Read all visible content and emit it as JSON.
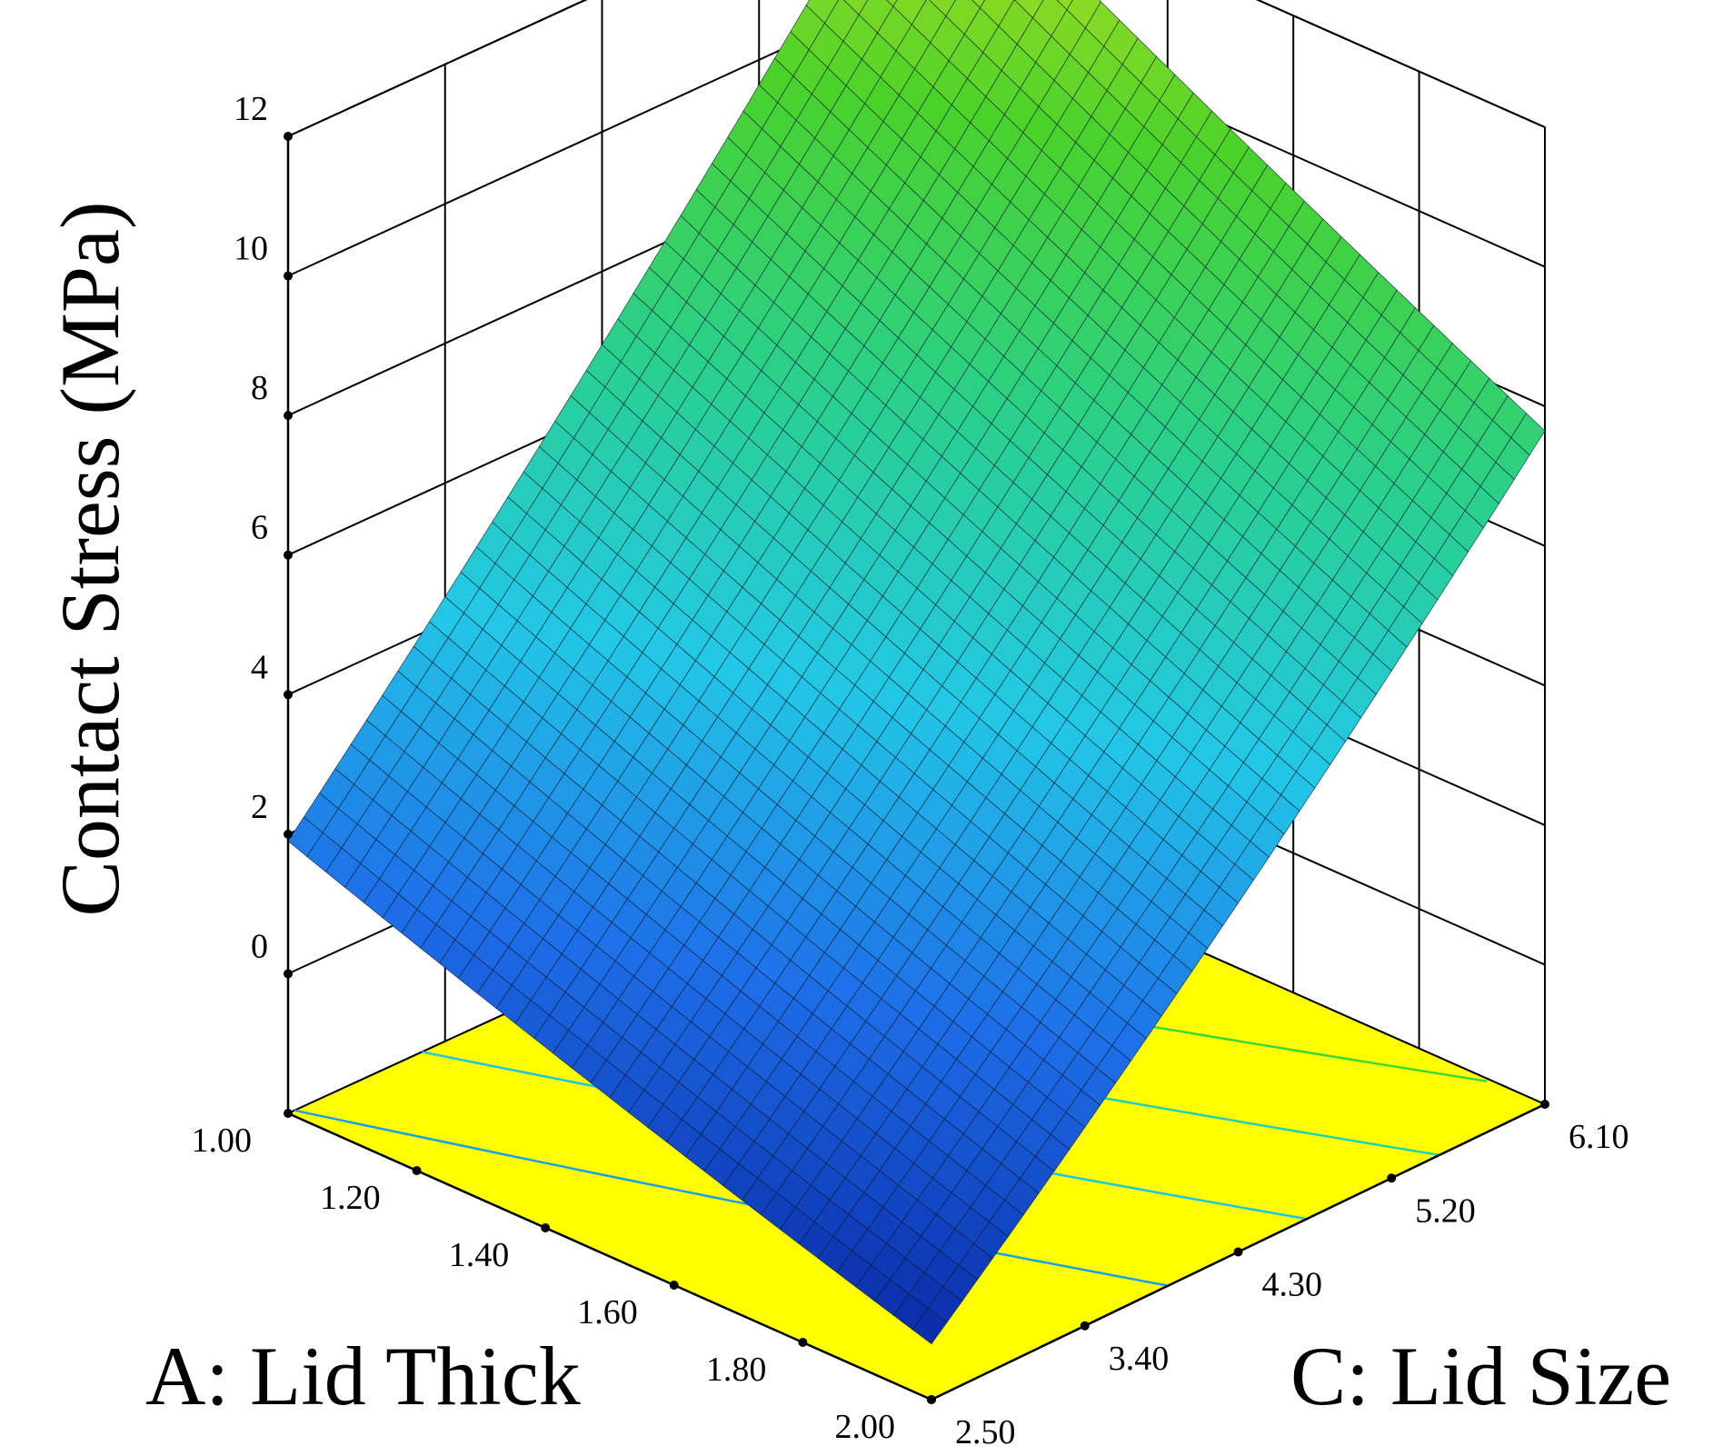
{
  "chart_data": {
    "type": "surface3d",
    "x_axis": {
      "label": "A: Lid Thick",
      "ticks": [
        "1.00",
        "1.20",
        "1.40",
        "1.60",
        "1.80",
        "2.00"
      ],
      "range": [
        1.0,
        2.0
      ]
    },
    "y_axis": {
      "label": "C: Lid Size",
      "ticks": [
        "2.50",
        "3.40",
        "4.30",
        "5.20",
        "6.10"
      ],
      "range": [
        2.5,
        6.1
      ]
    },
    "z_axis": {
      "label": "Contact  Stress (MPa)",
      "ticks": [
        "0",
        "2",
        "4",
        "6",
        "8",
        "10",
        "12"
      ],
      "range": [
        -2,
        12
      ]
    },
    "corner_values": {
      "thick_1.00_size_2.50": 1.9,
      "thick_2.00_size_2.50": -1.2,
      "thick_1.00_size_6.10": 12.0,
      "thick_2.00_size_6.10": 7.2
    },
    "colormap": [
      "#0a2aa8",
      "#1e6ee8",
      "#22c8e6",
      "#2ad08a",
      "#4ad22a",
      "#d8e41c"
    ],
    "floor_color": "#ffff00",
    "floor_contour_colors": [
      "#1aa0e8",
      "#20c4e4",
      "#22d0b4",
      "#3ad83a"
    ]
  }
}
